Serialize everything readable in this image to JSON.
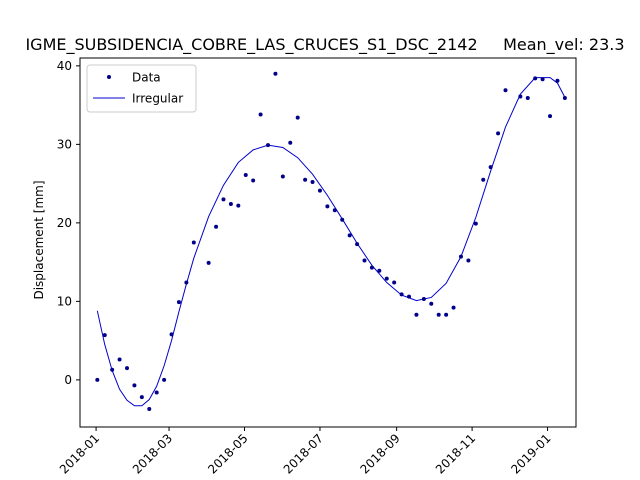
{
  "chart_data": {
    "type": "scatter",
    "title": "IGME_SUBSIDENCIA_COBRE_LAS_CRUCES_S1_DSC_2142     Mean_vel: 23.3",
    "xlabel": "",
    "ylabel": "Displacement [mm]",
    "x_axis_type": "date",
    "xlim": [
      "2017-12-19",
      "2019-01-24"
    ],
    "ylim": [
      -6,
      41
    ],
    "x_ticks": [
      "2018-01",
      "2018-03",
      "2018-05",
      "2018-07",
      "2018-09",
      "2018-11",
      "2019-01"
    ],
    "y_ticks": [
      0,
      10,
      20,
      30,
      40
    ],
    "grid": false,
    "legend": {
      "position": "top-left",
      "entries": [
        "Data",
        "Irregular"
      ]
    },
    "series": [
      {
        "name": "Data",
        "style": "points",
        "color": "#00008b",
        "points": [
          [
            "2018-01-02",
            0.0
          ],
          [
            "2018-01-08",
            5.7
          ],
          [
            "2018-01-14",
            1.3
          ],
          [
            "2018-01-20",
            2.6
          ],
          [
            "2018-01-26",
            1.5
          ],
          [
            "2018-02-01",
            -0.7
          ],
          [
            "2018-02-07",
            -2.2
          ],
          [
            "2018-02-13",
            -3.7
          ],
          [
            "2018-02-19",
            -1.6
          ],
          [
            "2018-02-25",
            0.0
          ],
          [
            "2018-03-03",
            5.8
          ],
          [
            "2018-03-09",
            9.9
          ],
          [
            "2018-03-15",
            12.4
          ],
          [
            "2018-03-21",
            17.5
          ],
          [
            "2018-04-02",
            14.9
          ],
          [
            "2018-04-08",
            19.5
          ],
          [
            "2018-04-14",
            23.0
          ],
          [
            "2018-04-20",
            22.4
          ],
          [
            "2018-04-26",
            22.2
          ],
          [
            "2018-05-02",
            26.1
          ],
          [
            "2018-05-08",
            25.4
          ],
          [
            "2018-05-14",
            33.8
          ],
          [
            "2018-05-20",
            29.9
          ],
          [
            "2018-05-26",
            39.0
          ],
          [
            "2018-06-01",
            25.9
          ],
          [
            "2018-06-07",
            30.2
          ],
          [
            "2018-06-13",
            33.4
          ],
          [
            "2018-06-19",
            25.5
          ],
          [
            "2018-06-25",
            25.2
          ],
          [
            "2018-07-01",
            24.1
          ],
          [
            "2018-07-07",
            22.1
          ],
          [
            "2018-07-13",
            21.6
          ],
          [
            "2018-07-19",
            20.4
          ],
          [
            "2018-07-25",
            18.4
          ],
          [
            "2018-07-31",
            17.3
          ],
          [
            "2018-08-06",
            15.2
          ],
          [
            "2018-08-12",
            14.3
          ],
          [
            "2018-08-18",
            13.9
          ],
          [
            "2018-08-24",
            12.9
          ],
          [
            "2018-08-30",
            12.4
          ],
          [
            "2018-09-05",
            10.9
          ],
          [
            "2018-09-11",
            10.6
          ],
          [
            "2018-09-17",
            8.3
          ],
          [
            "2018-09-23",
            10.3
          ],
          [
            "2018-09-29",
            9.7
          ],
          [
            "2018-10-05",
            8.3
          ],
          [
            "2018-10-11",
            8.3
          ],
          [
            "2018-10-17",
            9.2
          ],
          [
            "2018-10-23",
            15.7
          ],
          [
            "2018-10-29",
            15.2
          ],
          [
            "2018-11-04",
            19.9
          ],
          [
            "2018-11-10",
            25.5
          ],
          [
            "2018-11-16",
            27.1
          ],
          [
            "2018-11-22",
            31.4
          ],
          [
            "2018-11-28",
            36.9
          ],
          [
            "2018-12-10",
            36.1
          ],
          [
            "2018-12-16",
            35.9
          ],
          [
            "2018-12-22",
            38.4
          ],
          [
            "2018-12-28",
            38.3
          ],
          [
            "2019-01-03",
            33.6
          ],
          [
            "2019-01-09",
            38.1
          ],
          [
            "2019-01-15",
            35.9
          ]
        ]
      },
      {
        "name": "Irregular",
        "style": "line",
        "color": "#0000cd",
        "points": [
          [
            "2018-01-02",
            8.8
          ],
          [
            "2018-01-08",
            4.5
          ],
          [
            "2018-01-14",
            1.2
          ],
          [
            "2018-01-20",
            -1.2
          ],
          [
            "2018-01-26",
            -2.6
          ],
          [
            "2018-02-01",
            -3.3
          ],
          [
            "2018-02-07",
            -3.3
          ],
          [
            "2018-02-13",
            -2.5
          ],
          [
            "2018-02-19",
            -0.8
          ],
          [
            "2018-02-25",
            1.8
          ],
          [
            "2018-03-03",
            5.0
          ],
          [
            "2018-03-09",
            8.7
          ],
          [
            "2018-03-15",
            12.2
          ],
          [
            "2018-03-21",
            15.5
          ],
          [
            "2018-04-02",
            20.8
          ],
          [
            "2018-04-14",
            24.8
          ],
          [
            "2018-04-26",
            27.7
          ],
          [
            "2018-05-08",
            29.3
          ],
          [
            "2018-05-20",
            29.9
          ],
          [
            "2018-06-01",
            29.6
          ],
          [
            "2018-06-13",
            28.3
          ],
          [
            "2018-06-25",
            26.2
          ],
          [
            "2018-07-07",
            23.5
          ],
          [
            "2018-07-19",
            20.5
          ],
          [
            "2018-07-31",
            17.4
          ],
          [
            "2018-08-12",
            14.6
          ],
          [
            "2018-08-24",
            12.4
          ],
          [
            "2018-09-05",
            10.8
          ],
          [
            "2018-09-17",
            10.1
          ],
          [
            "2018-09-29",
            10.5
          ],
          [
            "2018-10-11",
            12.3
          ],
          [
            "2018-10-23",
            15.7
          ],
          [
            "2018-11-04",
            20.7
          ],
          [
            "2018-11-16",
            26.6
          ],
          [
            "2018-11-28",
            32.2
          ],
          [
            "2018-12-10",
            36.4
          ],
          [
            "2018-12-22",
            38.5
          ],
          [
            "2019-01-03",
            38.5
          ],
          [
            "2019-01-09",
            37.8
          ],
          [
            "2019-01-15",
            36.0
          ]
        ]
      }
    ]
  }
}
